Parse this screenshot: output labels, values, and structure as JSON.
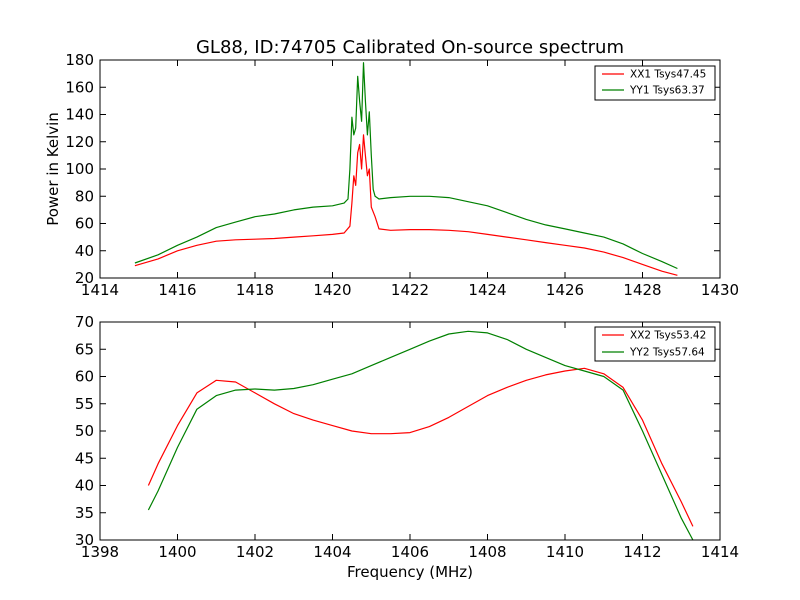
{
  "chart_data": [
    {
      "type": "line",
      "title": "GL88, ID:74705 Calibrated On-source spectrum",
      "xlabel": "",
      "ylabel": "Power in Kelvin",
      "xlim": [
        1414,
        1430
      ],
      "ylim": [
        20,
        180
      ],
      "xticks": [
        1414,
        1416,
        1418,
        1420,
        1422,
        1424,
        1426,
        1428,
        1430
      ],
      "yticks": [
        20,
        40,
        60,
        80,
        100,
        120,
        140,
        160,
        180
      ],
      "grid": false,
      "legend_position": "top-right",
      "series": [
        {
          "name": "XX1 Tsys47.45",
          "color": "#ff0000",
          "points": [
            [
              1414.9,
              29
            ],
            [
              1415.5,
              34
            ],
            [
              1416.0,
              40
            ],
            [
              1416.5,
              44
            ],
            [
              1417.0,
              47
            ],
            [
              1417.5,
              48
            ],
            [
              1418.0,
              48.5
            ],
            [
              1418.5,
              49
            ],
            [
              1419.0,
              50
            ],
            [
              1419.5,
              51
            ],
            [
              1420.0,
              52
            ],
            [
              1420.3,
              53
            ],
            [
              1420.45,
              58
            ],
            [
              1420.5,
              75
            ],
            [
              1420.55,
              95
            ],
            [
              1420.6,
              88
            ],
            [
              1420.65,
              112
            ],
            [
              1420.7,
              118
            ],
            [
              1420.75,
              100
            ],
            [
              1420.8,
              125
            ],
            [
              1420.85,
              110
            ],
            [
              1420.9,
              95
            ],
            [
              1420.95,
              100
            ],
            [
              1421.0,
              72
            ],
            [
              1421.1,
              65
            ],
            [
              1421.2,
              56
            ],
            [
              1421.5,
              55
            ],
            [
              1422.0,
              55.5
            ],
            [
              1422.5,
              55.5
            ],
            [
              1423.0,
              55
            ],
            [
              1423.5,
              54
            ],
            [
              1424.0,
              52
            ],
            [
              1424.5,
              50
            ],
            [
              1425.0,
              48
            ],
            [
              1425.5,
              46
            ],
            [
              1426.0,
              44
            ],
            [
              1426.5,
              42
            ],
            [
              1427.0,
              39
            ],
            [
              1427.5,
              35
            ],
            [
              1428.0,
              30
            ],
            [
              1428.5,
              25
            ],
            [
              1428.9,
              22
            ]
          ]
        },
        {
          "name": "YY1 Tsys63.37",
          "color": "#008000",
          "points": [
            [
              1414.9,
              31
            ],
            [
              1415.5,
              37
            ],
            [
              1416.0,
              44
            ],
            [
              1416.5,
              50
            ],
            [
              1417.0,
              57
            ],
            [
              1417.5,
              61
            ],
            [
              1418.0,
              65
            ],
            [
              1418.5,
              67
            ],
            [
              1419.0,
              70
            ],
            [
              1419.5,
              72
            ],
            [
              1420.0,
              73
            ],
            [
              1420.3,
              75
            ],
            [
              1420.4,
              78
            ],
            [
              1420.45,
              100
            ],
            [
              1420.5,
              138
            ],
            [
              1420.55,
              125
            ],
            [
              1420.6,
              130
            ],
            [
              1420.65,
              168
            ],
            [
              1420.7,
              150
            ],
            [
              1420.75,
              135
            ],
            [
              1420.8,
              178
            ],
            [
              1420.85,
              150
            ],
            [
              1420.9,
              125
            ],
            [
              1420.95,
              142
            ],
            [
              1421.0,
              110
            ],
            [
              1421.05,
              85
            ],
            [
              1421.1,
              80
            ],
            [
              1421.2,
              78
            ],
            [
              1421.5,
              79
            ],
            [
              1422.0,
              80
            ],
            [
              1422.5,
              80
            ],
            [
              1423.0,
              79
            ],
            [
              1423.5,
              76
            ],
            [
              1424.0,
              73
            ],
            [
              1424.5,
              68
            ],
            [
              1425.0,
              63
            ],
            [
              1425.5,
              59
            ],
            [
              1426.0,
              56
            ],
            [
              1426.5,
              53
            ],
            [
              1427.0,
              50
            ],
            [
              1427.5,
              45
            ],
            [
              1428.0,
              38
            ],
            [
              1428.5,
              32
            ],
            [
              1428.9,
              27
            ]
          ]
        }
      ]
    },
    {
      "type": "line",
      "title": "",
      "xlabel": "Frequency (MHz)",
      "ylabel": "",
      "xlim": [
        1398,
        1414
      ],
      "ylim": [
        30,
        70
      ],
      "xticks": [
        1398,
        1400,
        1402,
        1404,
        1406,
        1408,
        1410,
        1412,
        1414
      ],
      "yticks": [
        30,
        35,
        40,
        45,
        50,
        55,
        60,
        65,
        70
      ],
      "grid": false,
      "legend_position": "top-right",
      "series": [
        {
          "name": "XX2 Tsys53.42",
          "color": "#ff0000",
          "points": [
            [
              1399.25,
              40
            ],
            [
              1399.5,
              44
            ],
            [
              1400.0,
              51
            ],
            [
              1400.5,
              57
            ],
            [
              1401.0,
              59.3
            ],
            [
              1401.5,
              59
            ],
            [
              1402.0,
              57
            ],
            [
              1402.5,
              55
            ],
            [
              1403.0,
              53.2
            ],
            [
              1403.5,
              52
            ],
            [
              1404.0,
              51
            ],
            [
              1404.5,
              50
            ],
            [
              1405.0,
              49.5
            ],
            [
              1405.5,
              49.5
            ],
            [
              1406.0,
              49.7
            ],
            [
              1406.5,
              50.8
            ],
            [
              1407.0,
              52.5
            ],
            [
              1407.5,
              54.5
            ],
            [
              1408.0,
              56.5
            ],
            [
              1408.5,
              58
            ],
            [
              1409.0,
              59.3
            ],
            [
              1409.5,
              60.3
            ],
            [
              1410.0,
              61
            ],
            [
              1410.5,
              61.5
            ],
            [
              1411.0,
              60.5
            ],
            [
              1411.5,
              58
            ],
            [
              1412.0,
              52
            ],
            [
              1412.5,
              44
            ],
            [
              1413.0,
              37
            ],
            [
              1413.3,
              32.5
            ]
          ]
        },
        {
          "name": "YY2 Tsys57.64",
          "color": "#008000",
          "points": [
            [
              1399.25,
              35.5
            ],
            [
              1399.5,
              39
            ],
            [
              1400.0,
              47
            ],
            [
              1400.5,
              54
            ],
            [
              1401.0,
              56.5
            ],
            [
              1401.5,
              57.5
            ],
            [
              1402.0,
              57.7
            ],
            [
              1402.5,
              57.5
            ],
            [
              1403.0,
              57.8
            ],
            [
              1403.5,
              58.5
            ],
            [
              1404.0,
              59.5
            ],
            [
              1404.5,
              60.5
            ],
            [
              1405.0,
              62
            ],
            [
              1405.5,
              63.5
            ],
            [
              1406.0,
              65
            ],
            [
              1406.5,
              66.5
            ],
            [
              1407.0,
              67.8
            ],
            [
              1407.5,
              68.3
            ],
            [
              1408.0,
              68
            ],
            [
              1408.5,
              66.8
            ],
            [
              1409.0,
              65
            ],
            [
              1409.5,
              63.5
            ],
            [
              1410.0,
              62
            ],
            [
              1410.5,
              61
            ],
            [
              1411.0,
              60
            ],
            [
              1411.5,
              57.5
            ],
            [
              1412.0,
              50
            ],
            [
              1412.5,
              42
            ],
            [
              1413.0,
              34
            ],
            [
              1413.3,
              30
            ]
          ]
        }
      ]
    }
  ]
}
